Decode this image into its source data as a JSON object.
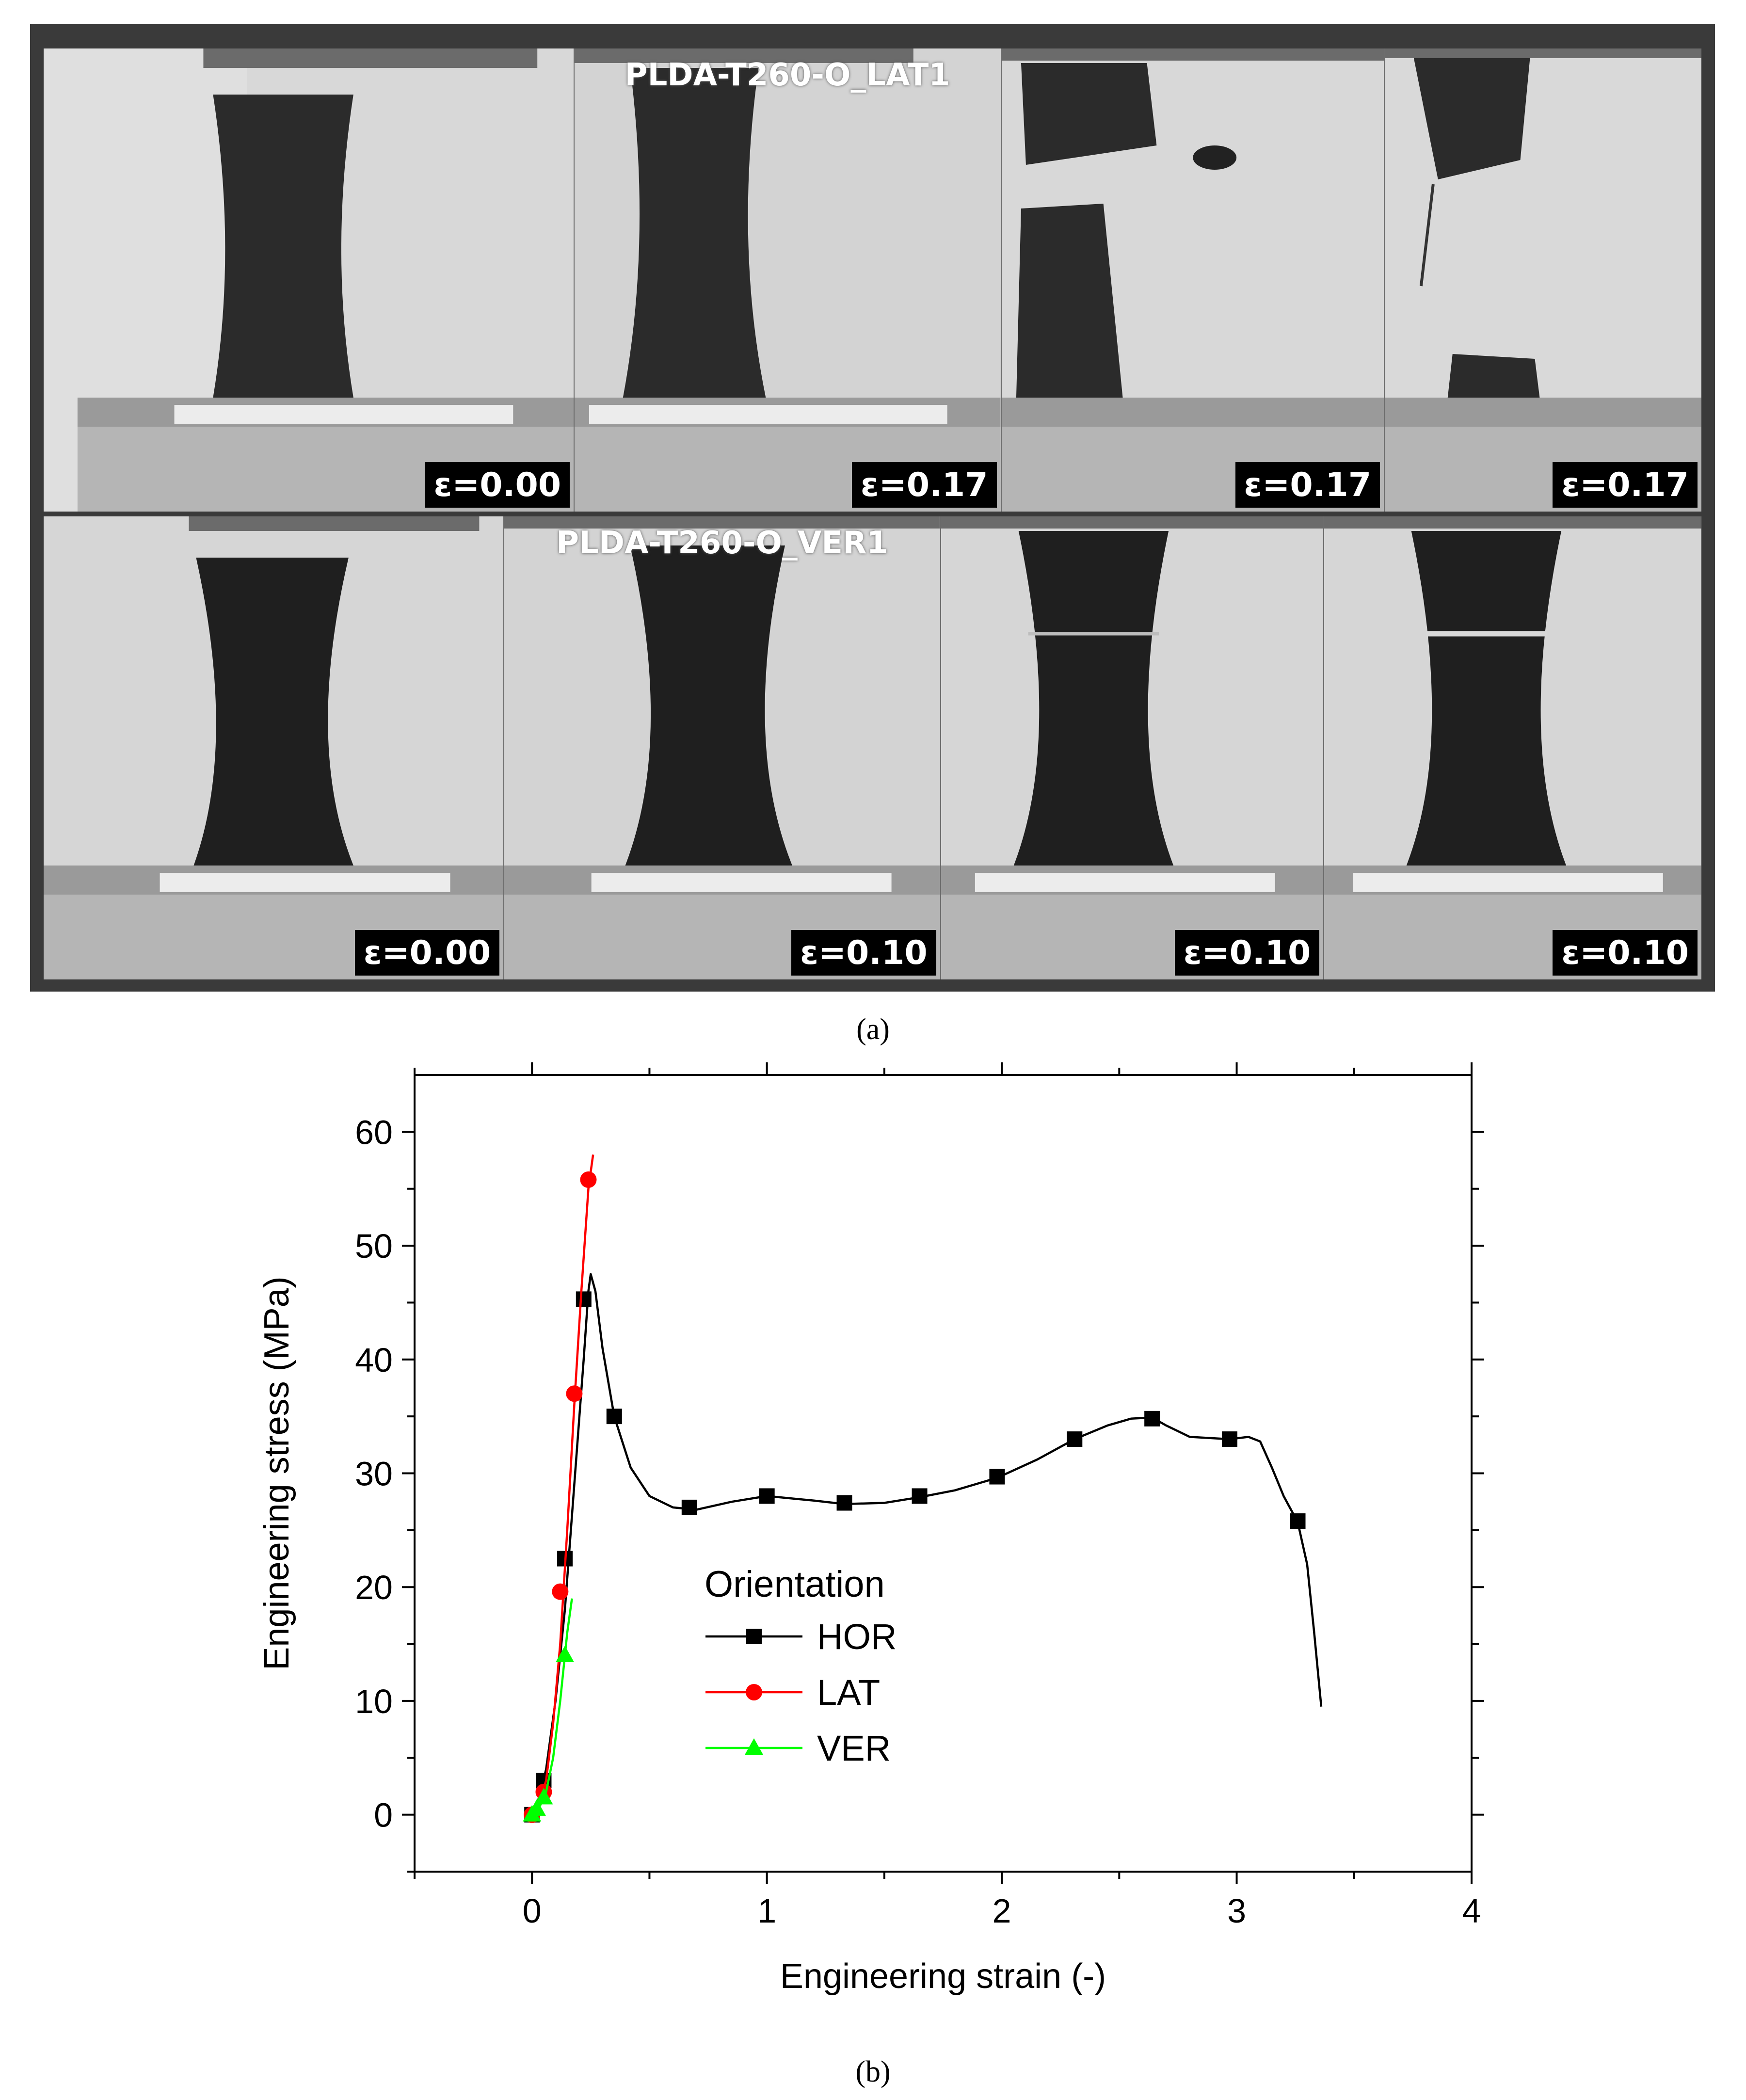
{
  "panel_a": {
    "rows": [
      {
        "label": "PLDA-T260-O_LAT1",
        "frames": [
          "ε=0.00",
          "ε=0.17",
          "ε=0.17",
          "ε=0.17"
        ]
      },
      {
        "label": "PLDA-T260-O_VER1",
        "frames": [
          "ε=0.00",
          "ε=0.10",
          "ε=0.10",
          "ε=0.10"
        ]
      }
    ],
    "caption": "(a)"
  },
  "panel_b": {
    "caption": "(b)"
  },
  "chart_data": {
    "type": "line",
    "title": "",
    "xlabel": "Engineering strain (-)",
    "ylabel": "Engineering stress (MPa)",
    "xlim": [
      -0.5,
      4
    ],
    "ylim": [
      -5,
      65
    ],
    "xticks": [
      0,
      1,
      2,
      3,
      4
    ],
    "yticks": [
      0,
      10,
      20,
      30,
      40,
      50,
      60
    ],
    "grid": false,
    "legend": {
      "title": "Orientation",
      "placement": "center-left"
    },
    "series": [
      {
        "name": "HOR",
        "color": "#000000",
        "marker": "square",
        "curve": [
          [
            0,
            0
          ],
          [
            0.03,
            1.5
          ],
          [
            0.06,
            4
          ],
          [
            0.1,
            10
          ],
          [
            0.14,
            18
          ],
          [
            0.18,
            29
          ],
          [
            0.22,
            40
          ],
          [
            0.24,
            46
          ],
          [
            0.25,
            47.5
          ],
          [
            0.27,
            46
          ],
          [
            0.3,
            41
          ],
          [
            0.35,
            35
          ],
          [
            0.42,
            30.5
          ],
          [
            0.5,
            28
          ],
          [
            0.6,
            27
          ],
          [
            0.7,
            26.8
          ],
          [
            0.85,
            27.5
          ],
          [
            1.0,
            28
          ],
          [
            1.2,
            27.6
          ],
          [
            1.33,
            27.3
          ],
          [
            1.5,
            27.4
          ],
          [
            1.65,
            27.9
          ],
          [
            1.8,
            28.5
          ],
          [
            1.98,
            29.6
          ],
          [
            2.15,
            31.2
          ],
          [
            2.31,
            33
          ],
          [
            2.45,
            34.2
          ],
          [
            2.55,
            34.8
          ],
          [
            2.64,
            34.9
          ],
          [
            2.7,
            34.2
          ],
          [
            2.8,
            33.2
          ],
          [
            2.97,
            33
          ],
          [
            3.05,
            33.2
          ],
          [
            3.1,
            32.8
          ],
          [
            3.15,
            30.5
          ],
          [
            3.2,
            28
          ],
          [
            3.26,
            25.7
          ],
          [
            3.3,
            22
          ],
          [
            3.33,
            16
          ],
          [
            3.36,
            9.5
          ]
        ],
        "markers": [
          [
            0,
            0
          ],
          [
            0.05,
            3
          ],
          [
            0.14,
            22.5
          ],
          [
            0.22,
            45.3
          ],
          [
            0.35,
            35
          ],
          [
            0.67,
            27
          ],
          [
            1.0,
            28
          ],
          [
            1.33,
            27.4
          ],
          [
            1.65,
            28
          ],
          [
            1.98,
            29.7
          ],
          [
            2.31,
            33
          ],
          [
            2.64,
            34.8
          ],
          [
            2.97,
            33
          ],
          [
            3.26,
            25.8
          ]
        ]
      },
      {
        "name": "LAT",
        "color": "#ff0000",
        "marker": "circle",
        "curve": [
          [
            0,
            0
          ],
          [
            0.03,
            1
          ],
          [
            0.06,
            3
          ],
          [
            0.09,
            8
          ],
          [
            0.12,
            15
          ],
          [
            0.15,
            25
          ],
          [
            0.18,
            36
          ],
          [
            0.21,
            46
          ],
          [
            0.24,
            55
          ],
          [
            0.26,
            58
          ]
        ],
        "markers": [
          [
            0,
            0
          ],
          [
            0.05,
            2
          ],
          [
            0.12,
            19.6
          ],
          [
            0.18,
            37
          ],
          [
            0.24,
            55.8
          ]
        ]
      },
      {
        "name": "VER",
        "color": "#00ff00",
        "marker": "triangle",
        "curve": [
          [
            0,
            0
          ],
          [
            0.03,
            0.6
          ],
          [
            0.06,
            2
          ],
          [
            0.09,
            5
          ],
          [
            0.12,
            10
          ],
          [
            0.15,
            16
          ],
          [
            0.17,
            19
          ]
        ],
        "markers": [
          [
            0,
            0
          ],
          [
            0.02,
            0.5
          ],
          [
            0.05,
            1.5
          ],
          [
            0.14,
            14
          ]
        ]
      }
    ]
  }
}
